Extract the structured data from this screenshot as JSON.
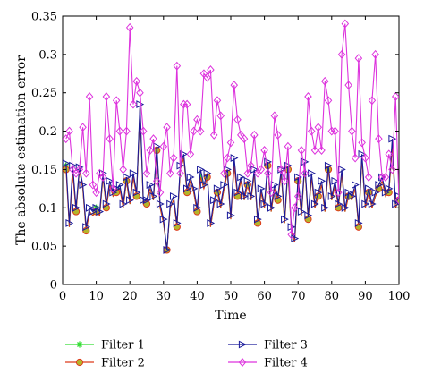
{
  "chart_data": {
    "type": "line",
    "xlabel": "Time",
    "ylabel": "The absolute estimation error",
    "xlim": [
      0,
      100
    ],
    "ylim": [
      0,
      0.35
    ],
    "xticks": [
      0,
      10,
      20,
      30,
      40,
      50,
      60,
      70,
      80,
      90,
      100
    ],
    "yticks": [
      0,
      0.05,
      0.1,
      0.15,
      0.2,
      0.25,
      0.3,
      0.35
    ],
    "xtick_labels": [
      "0",
      "10",
      "20",
      "30",
      "40",
      "50",
      "60",
      "70",
      "80",
      "90",
      "100"
    ],
    "ytick_labels": [
      "0",
      "0.05",
      "0.1",
      "0.15",
      "0.2",
      "0.25",
      "0.3",
      "0.35"
    ],
    "grid": false,
    "legend_position": "bottom, outside plot, two columns",
    "x": [
      1,
      2,
      3,
      4,
      5,
      6,
      7,
      8,
      9,
      10,
      11,
      12,
      13,
      14,
      15,
      16,
      17,
      18,
      19,
      20,
      21,
      22,
      23,
      24,
      25,
      26,
      27,
      28,
      29,
      30,
      31,
      32,
      33,
      34,
      35,
      36,
      37,
      38,
      39,
      40,
      41,
      42,
      43,
      44,
      45,
      46,
      47,
      48,
      49,
      50,
      51,
      52,
      53,
      54,
      55,
      56,
      57,
      58,
      59,
      60,
      61,
      62,
      63,
      64,
      65,
      66,
      67,
      68,
      69,
      70,
      71,
      72,
      73,
      74,
      75,
      76,
      77,
      78,
      79,
      80,
      81,
      82,
      83,
      84,
      85,
      86,
      87,
      88,
      89,
      90,
      91,
      92,
      93,
      94,
      95,
      96,
      97,
      98,
      99,
      100
    ],
    "series": [
      {
        "name": "Filter 1",
        "color": "#33dd33",
        "marker": "star",
        "values": [
          0.155,
          0.075,
          0.15,
          0.095,
          0.15,
          0.125,
          0.07,
          0.095,
          0.09,
          0.1,
          0.09,
          0.14,
          0.1,
          0.13,
          0.115,
          0.12,
          0.13,
          0.1,
          0.135,
          0.105,
          0.14,
          0.115,
          0.23,
          0.105,
          0.105,
          0.125,
          0.11,
          0.175,
          0.1,
          0.08,
          0.045,
          0.1,
          0.11,
          0.075,
          0.15,
          0.165,
          0.12,
          0.135,
          0.12,
          0.095,
          0.145,
          0.125,
          0.14,
          0.075,
          0.105,
          0.12,
          0.1,
          0.125,
          0.145,
          0.085,
          0.16,
          0.115,
          0.135,
          0.11,
          0.13,
          0.11,
          0.145,
          0.08,
          0.12,
          0.1,
          0.155,
          0.095,
          0.125,
          0.11,
          0.145,
          0.08,
          0.15,
          0.07,
          0.055,
          0.135,
          0.09,
          0.155,
          0.085,
          0.14,
          0.1,
          0.115,
          0.13,
          0.095,
          0.15,
          0.11,
          0.13,
          0.1,
          0.145,
          0.095,
          0.115,
          0.11,
          0.125,
          0.075,
          0.165,
          0.1,
          0.12,
          0.1,
          0.115,
          0.125,
          0.135,
          0.115,
          0.12,
          0.18,
          0.1,
          0.11
        ]
      },
      {
        "name": "Filter 2",
        "color": "#dd3a1a",
        "marker": "circle",
        "values": [
          0.15,
          0.075,
          0.145,
          0.095,
          0.15,
          0.125,
          0.07,
          0.095,
          0.09,
          0.095,
          0.09,
          0.14,
          0.1,
          0.13,
          0.115,
          0.12,
          0.125,
          0.1,
          0.135,
          0.105,
          0.14,
          0.115,
          0.23,
          0.105,
          0.105,
          0.125,
          0.11,
          0.175,
          0.1,
          0.08,
          0.045,
          0.1,
          0.11,
          0.075,
          0.15,
          0.165,
          0.12,
          0.135,
          0.12,
          0.095,
          0.14,
          0.125,
          0.14,
          0.075,
          0.105,
          0.12,
          0.1,
          0.125,
          0.145,
          0.085,
          0.155,
          0.115,
          0.135,
          0.11,
          0.13,
          0.11,
          0.145,
          0.08,
          0.12,
          0.1,
          0.155,
          0.095,
          0.125,
          0.11,
          0.145,
          0.08,
          0.15,
          0.07,
          0.055,
          0.135,
          0.09,
          0.155,
          0.085,
          0.14,
          0.1,
          0.115,
          0.13,
          0.095,
          0.15,
          0.11,
          0.13,
          0.1,
          0.145,
          0.095,
          0.115,
          0.11,
          0.125,
          0.075,
          0.165,
          0.1,
          0.12,
          0.1,
          0.115,
          0.125,
          0.135,
          0.115,
          0.12,
          0.18,
          0.1,
          0.11
        ]
      },
      {
        "name": "Filter 3",
        "color": "#1a1a9a",
        "marker": "triangle-right",
        "values": [
          0.158,
          0.08,
          0.155,
          0.1,
          0.153,
          0.13,
          0.075,
          0.1,
          0.095,
          0.1,
          0.095,
          0.145,
          0.105,
          0.135,
          0.12,
          0.125,
          0.13,
          0.105,
          0.14,
          0.11,
          0.145,
          0.12,
          0.235,
          0.11,
          0.11,
          0.13,
          0.115,
          0.18,
          0.105,
          0.085,
          0.045,
          0.105,
          0.115,
          0.08,
          0.155,
          0.17,
          0.125,
          0.14,
          0.125,
          0.1,
          0.15,
          0.13,
          0.145,
          0.08,
          0.11,
          0.125,
          0.105,
          0.13,
          0.15,
          0.09,
          0.165,
          0.12,
          0.14,
          0.115,
          0.135,
          0.115,
          0.15,
          0.085,
          0.125,
          0.105,
          0.16,
          0.1,
          0.13,
          0.115,
          0.15,
          0.085,
          0.155,
          0.075,
          0.06,
          0.14,
          0.095,
          0.16,
          0.09,
          0.145,
          0.105,
          0.12,
          0.135,
          0.1,
          0.155,
          0.115,
          0.135,
          0.105,
          0.15,
          0.1,
          0.12,
          0.115,
          0.13,
          0.08,
          0.17,
          0.105,
          0.125,
          0.105,
          0.12,
          0.13,
          0.14,
          0.12,
          0.125,
          0.19,
          0.105,
          0.115
        ]
      },
      {
        "name": "Filter 4",
        "color": "#dd33dd",
        "marker": "diamond",
        "values": [
          0.19,
          0.2,
          0.15,
          0.145,
          0.15,
          0.205,
          0.145,
          0.245,
          0.13,
          0.12,
          0.145,
          0.14,
          0.245,
          0.19,
          0.125,
          0.24,
          0.2,
          0.15,
          0.2,
          0.335,
          0.235,
          0.265,
          0.25,
          0.2,
          0.145,
          0.175,
          0.19,
          0.135,
          0.12,
          0.18,
          0.205,
          0.145,
          0.165,
          0.285,
          0.145,
          0.235,
          0.235,
          0.17,
          0.2,
          0.215,
          0.2,
          0.275,
          0.27,
          0.28,
          0.195,
          0.24,
          0.22,
          0.145,
          0.165,
          0.185,
          0.26,
          0.215,
          0.195,
          0.19,
          0.145,
          0.155,
          0.195,
          0.145,
          0.15,
          0.175,
          0.145,
          0.12,
          0.22,
          0.195,
          0.15,
          0.135,
          0.18,
          0.065,
          0.1,
          0.115,
          0.175,
          0.145,
          0.245,
          0.2,
          0.175,
          0.205,
          0.175,
          0.265,
          0.24,
          0.2,
          0.2,
          0.12,
          0.3,
          0.34,
          0.26,
          0.2,
          0.165,
          0.295,
          0.185,
          0.165,
          0.14,
          0.24,
          0.3,
          0.19,
          0.14,
          0.14,
          0.17,
          0.15,
          0.245,
          0.11
        ]
      }
    ]
  }
}
